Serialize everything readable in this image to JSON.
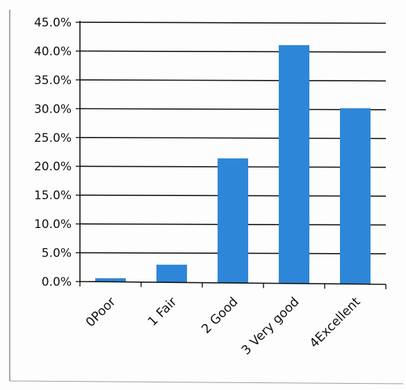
{
  "chart_data": {
    "type": "bar",
    "title": "",
    "xlabel": "",
    "ylabel": "",
    "categories": [
      "0Poor",
      "1 Fair",
      "2 Good",
      "3 Very good",
      "4Excellent"
    ],
    "values": [
      0.6,
      3.0,
      21.5,
      41.2,
      30.3
    ],
    "value_unit": "%",
    "ylim": [
      0,
      45
    ],
    "yticks": [
      0,
      5,
      10,
      15,
      20,
      25,
      30,
      35,
      40,
      45
    ],
    "ytick_labels": [
      "0.0%",
      "5.0%",
      "10.0%",
      "15.0%",
      "20.0%",
      "25.0%",
      "30.0%",
      "35.0%",
      "40.0%",
      "45.0%"
    ],
    "grid": true,
    "legend": "none",
    "bar_color": "#2e86d8"
  }
}
